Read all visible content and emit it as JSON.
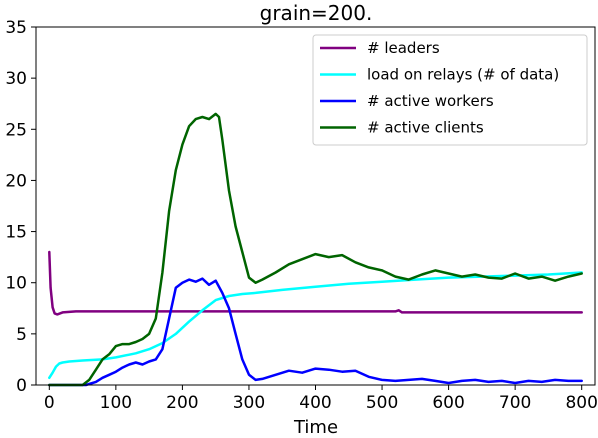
{
  "chart_data": {
    "type": "line",
    "title": "grain=200.",
    "xlabel": "Time",
    "ylabel": "",
    "xlim": [
      -20,
      820
    ],
    "ylim": [
      0,
      35
    ],
    "xticks": [
      0,
      100,
      200,
      300,
      400,
      500,
      600,
      700,
      800
    ],
    "yticks": [
      0,
      5,
      10,
      15,
      20,
      25,
      30,
      35
    ],
    "grid": false,
    "legend_position": "top-right",
    "series": [
      {
        "name": "# leaders",
        "color": "#800080",
        "x": [
          0,
          2,
          5,
          8,
          12,
          20,
          40,
          100,
          200,
          300,
          400,
          500,
          520,
          525,
          530,
          560,
          600,
          700,
          800
        ],
        "y": [
          13,
          9.5,
          7.6,
          7.0,
          6.9,
          7.1,
          7.2,
          7.2,
          7.2,
          7.2,
          7.2,
          7.2,
          7.2,
          7.3,
          7.1,
          7.1,
          7.1,
          7.1,
          7.1
        ]
      },
      {
        "name": "load on relays (# of data)",
        "color": "#00ffff",
        "x": [
          0,
          5,
          10,
          15,
          20,
          30,
          50,
          80,
          100,
          130,
          150,
          170,
          190,
          210,
          230,
          250,
          270,
          290,
          310,
          350,
          400,
          450,
          500,
          550,
          600,
          650,
          700,
          750,
          800
        ],
        "y": [
          0.7,
          1.2,
          1.8,
          2.1,
          2.2,
          2.3,
          2.4,
          2.5,
          2.7,
          3.1,
          3.5,
          4.1,
          5.0,
          6.2,
          7.3,
          8.3,
          8.7,
          8.9,
          9.0,
          9.3,
          9.6,
          9.9,
          10.1,
          10.3,
          10.5,
          10.6,
          10.7,
          10.8,
          11.0
        ]
      },
      {
        "name": "# active workers",
        "color": "#0000ff",
        "x": [
          0,
          30,
          55,
          70,
          80,
          90,
          100,
          110,
          120,
          130,
          140,
          150,
          160,
          170,
          180,
          190,
          200,
          210,
          220,
          230,
          240,
          250,
          260,
          270,
          280,
          290,
          300,
          310,
          320,
          340,
          360,
          380,
          400,
          420,
          440,
          460,
          480,
          500,
          520,
          540,
          560,
          580,
          600,
          620,
          640,
          660,
          680,
          700,
          720,
          740,
          760,
          780,
          800
        ],
        "y": [
          0,
          0,
          0,
          0.3,
          0.7,
          1.0,
          1.3,
          1.7,
          2.0,
          2.2,
          2.0,
          2.3,
          2.5,
          3.5,
          6.5,
          9.5,
          10.0,
          10.3,
          10.1,
          10.4,
          9.8,
          10.2,
          9.0,
          7.5,
          5.0,
          2.5,
          1.0,
          0.5,
          0.6,
          1.0,
          1.4,
          1.2,
          1.6,
          1.5,
          1.3,
          1.4,
          0.8,
          0.5,
          0.4,
          0.5,
          0.6,
          0.4,
          0.2,
          0.4,
          0.5,
          0.3,
          0.4,
          0.2,
          0.4,
          0.3,
          0.5,
          0.4,
          0.4
        ]
      },
      {
        "name": "# active clients",
        "color": "#006400",
        "x": [
          0,
          30,
          50,
          60,
          70,
          80,
          90,
          100,
          110,
          120,
          130,
          140,
          150,
          160,
          170,
          180,
          190,
          200,
          210,
          220,
          230,
          240,
          250,
          255,
          260,
          270,
          280,
          290,
          300,
          310,
          320,
          340,
          360,
          380,
          400,
          420,
          440,
          460,
          480,
          500,
          520,
          540,
          560,
          580,
          600,
          620,
          640,
          660,
          680,
          700,
          720,
          740,
          760,
          780,
          800
        ],
        "y": [
          0,
          0,
          0,
          0.5,
          1.5,
          2.5,
          3.0,
          3.8,
          4.0,
          4.0,
          4.2,
          4.5,
          5.0,
          6.5,
          11.0,
          17.0,
          21.0,
          23.5,
          25.3,
          26.0,
          26.2,
          26.0,
          26.5,
          26.2,
          24.0,
          19.0,
          15.5,
          13.0,
          10.5,
          10.0,
          10.3,
          11.0,
          11.8,
          12.3,
          12.8,
          12.5,
          12.7,
          12.0,
          11.5,
          11.2,
          10.6,
          10.3,
          10.8,
          11.2,
          10.9,
          10.6,
          10.8,
          10.5,
          10.4,
          10.9,
          10.4,
          10.6,
          10.2,
          10.6,
          10.9
        ]
      }
    ]
  }
}
